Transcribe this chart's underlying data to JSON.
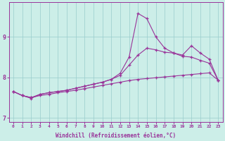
{
  "xlabel": "Windchill (Refroidissement éolien,°C)",
  "background_color": "#cceee8",
  "line_color": "#993399",
  "grid_color": "#99cccc",
  "xlim": [
    -0.5,
    23.5
  ],
  "ylim": [
    6.9,
    9.85
  ],
  "xticks": [
    0,
    1,
    2,
    3,
    4,
    5,
    6,
    7,
    8,
    9,
    10,
    11,
    12,
    13,
    14,
    15,
    16,
    17,
    18,
    19,
    20,
    21,
    22,
    23
  ],
  "yticks": [
    7,
    8,
    9
  ],
  "line1_x": [
    0,
    1,
    2,
    3,
    4,
    5,
    6,
    7,
    8,
    9,
    10,
    11,
    12,
    13,
    14,
    15,
    16,
    17,
    18,
    19,
    20,
    21,
    22,
    23
  ],
  "line1_y": [
    7.65,
    7.55,
    7.48,
    7.58,
    7.62,
    7.65,
    7.68,
    7.73,
    7.78,
    7.83,
    7.88,
    7.95,
    8.1,
    8.5,
    9.58,
    9.45,
    9.0,
    8.72,
    8.6,
    8.52,
    8.5,
    8.42,
    8.35,
    7.93
  ],
  "line2_x": [
    0,
    1,
    2,
    3,
    4,
    5,
    6,
    7,
    8,
    9,
    10,
    11,
    12,
    13,
    14,
    15,
    16,
    17,
    18,
    19,
    20,
    21,
    22,
    23
  ],
  "line2_y": [
    7.65,
    7.55,
    7.5,
    7.58,
    7.62,
    7.65,
    7.68,
    7.73,
    7.78,
    7.83,
    7.88,
    7.95,
    8.05,
    8.3,
    8.55,
    8.72,
    8.68,
    8.62,
    8.6,
    8.55,
    8.78,
    8.6,
    8.45,
    7.93
  ],
  "line3_x": [
    0,
    1,
    2,
    3,
    4,
    5,
    6,
    7,
    8,
    9,
    10,
    11,
    12,
    13,
    14,
    15,
    16,
    17,
    18,
    19,
    20,
    21,
    22,
    23
  ],
  "line3_y": [
    7.65,
    7.55,
    7.5,
    7.55,
    7.58,
    7.62,
    7.65,
    7.68,
    7.72,
    7.76,
    7.8,
    7.84,
    7.88,
    7.92,
    7.95,
    7.97,
    7.99,
    8.01,
    8.03,
    8.05,
    8.07,
    8.09,
    8.11,
    7.93
  ]
}
